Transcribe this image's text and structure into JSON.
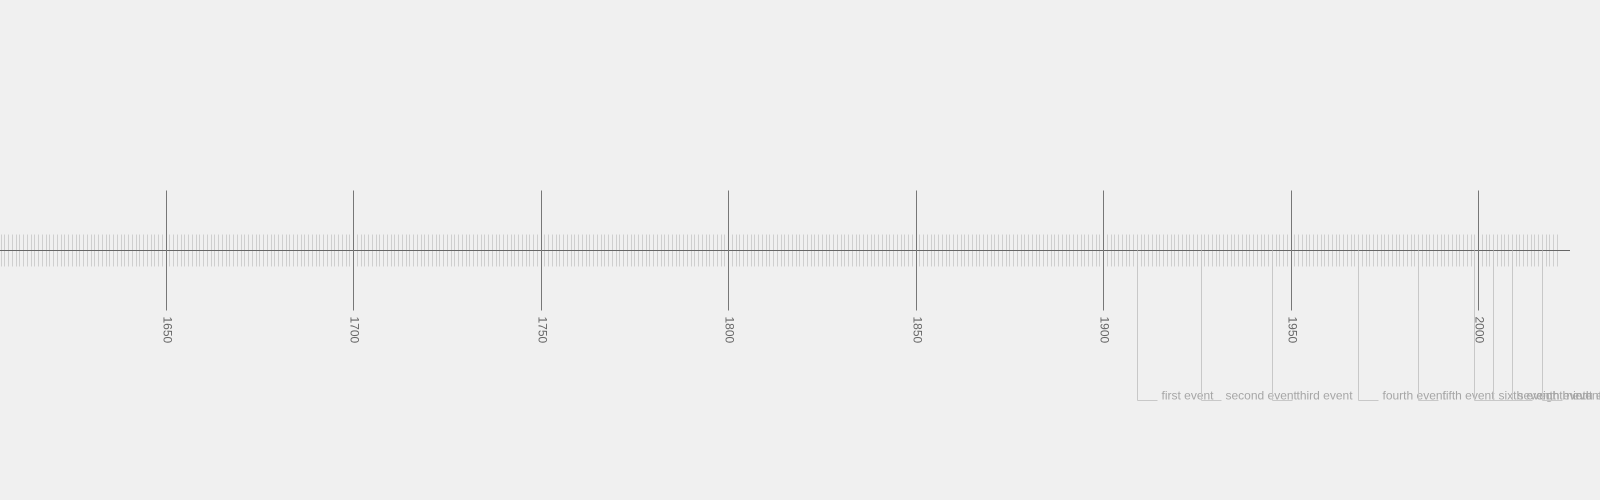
{
  "timeline": {
    "start_year": 1606,
    "end_year": 2026,
    "major_ticks": [
      1650,
      1700,
      1750,
      1800,
      1850,
      1900,
      1950,
      2000
    ],
    "colors": {
      "background": "#f0f0f0",
      "axis": "#666666",
      "major_tick": "#777777",
      "minor_tick": "#cfcfcf",
      "year_label": "#666666",
      "event_line": "#c8c8c8",
      "event_label": "#a6a6a6"
    },
    "events": [
      {
        "name": "first event",
        "year": 1909
      },
      {
        "name": "second event",
        "year": 1926
      },
      {
        "name": "third event",
        "year": 1945
      },
      {
        "name": "fourth event",
        "year": 1968
      },
      {
        "name": "fifth event",
        "year": 1984
      },
      {
        "name": "sixth event",
        "year": 1999
      },
      {
        "name": "seventh event",
        "year": 2004
      },
      {
        "name": "eighth event",
        "year": 2009
      },
      {
        "name": "ninth event",
        "year": 2017
      }
    ]
  }
}
